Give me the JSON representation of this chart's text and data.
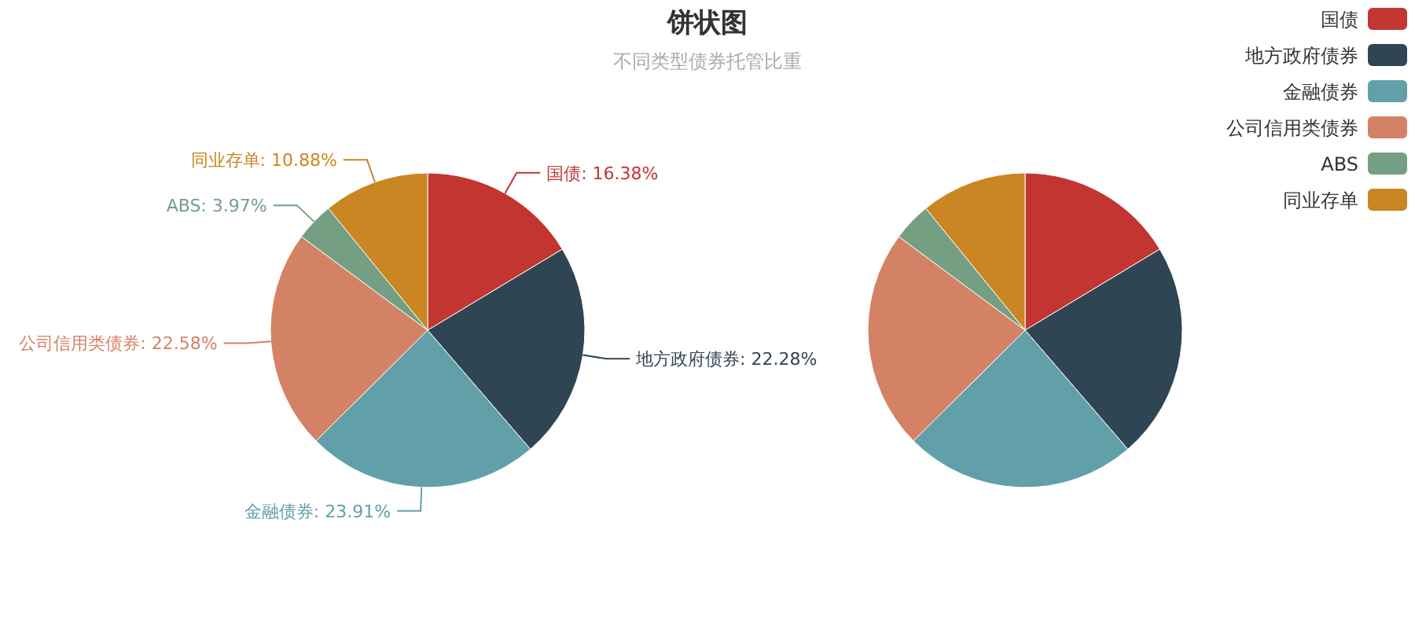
{
  "chart_data": [
    {
      "type": "pie",
      "title": "饼状图",
      "subtitle": "不同类型债券托管比重",
      "categories": [
        "国债",
        "地方政府债券",
        "金融债券",
        "公司信用类债券",
        "ABS",
        "同业存单"
      ],
      "values": [
        16.38,
        22.28,
        23.91,
        22.58,
        3.97,
        10.88
      ],
      "colors": [
        "#c23531",
        "#2f4554",
        "#61a0a8",
        "#d48265",
        "#749f83",
        "#ca8622"
      ],
      "data_labels": true,
      "value_labels": [
        "16.38%",
        "22.28%",
        "23.91%",
        "22.58%",
        "3.97%",
        "10.88%"
      ]
    },
    {
      "type": "pie",
      "categories": [
        "国债",
        "地方政府债券",
        "金融债券",
        "公司信用类债券",
        "ABS",
        "同业存单"
      ],
      "values": [
        16.38,
        22.28,
        23.91,
        22.58,
        3.97,
        10.88
      ],
      "colors": [
        "#c23531",
        "#2f4554",
        "#61a0a8",
        "#d48265",
        "#749f83",
        "#ca8622"
      ],
      "legend": "top right"
    }
  ]
}
